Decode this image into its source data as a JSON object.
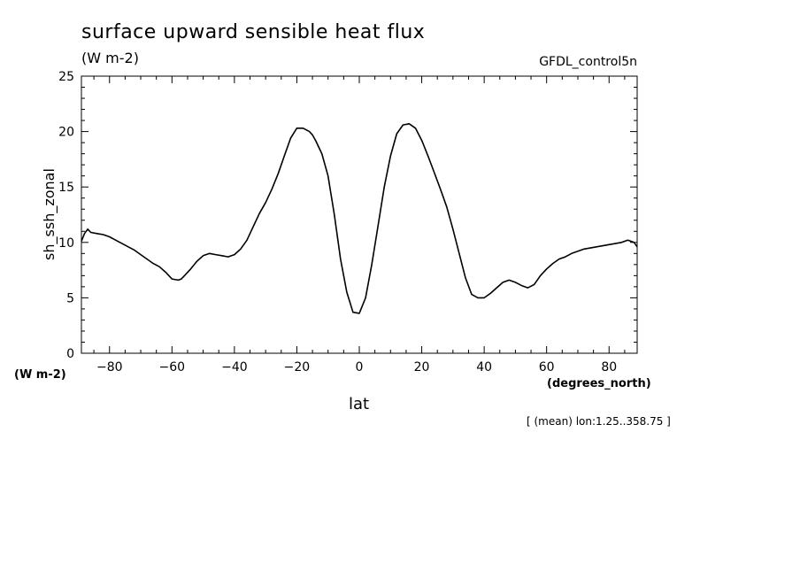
{
  "chart_data": {
    "type": "line",
    "title": "surface upward sensible heat flux",
    "units": "(W m-2)",
    "dataset": "GFDL_control5n",
    "ylabel": "sh_ssh_zonal",
    "yunits": "(W m-2)",
    "xlabel": "lat",
    "xunits": "(degrees_north)",
    "footnote": "[ (mean) lon:1.25..358.75 ]",
    "xlim": [
      -89,
      89
    ],
    "ylim": [
      0,
      25
    ],
    "xticks": [
      -80,
      -60,
      -40,
      -20,
      0,
      20,
      40,
      60,
      80
    ],
    "yticks": [
      0,
      5,
      10,
      15,
      20,
      25
    ],
    "grid": false,
    "series": [
      {
        "x": [
          -89,
          -88,
          -87,
          -86,
          -84,
          -82,
          -80,
          -78,
          -76,
          -74,
          -72,
          -70,
          -68,
          -66,
          -64,
          -62,
          -60,
          -58,
          -57,
          -56,
          -54,
          -52,
          -50,
          -48,
          -46,
          -44,
          -42,
          -40,
          -38,
          -36,
          -34,
          -32,
          -30,
          -28,
          -26,
          -24,
          -22,
          -20,
          -18,
          -16,
          -15,
          -14,
          -12,
          -10,
          -8,
          -6,
          -4,
          -2,
          0,
          2,
          4,
          6,
          8,
          10,
          12,
          14,
          16,
          18,
          20,
          22,
          24,
          26,
          28,
          30,
          32,
          34,
          36,
          38,
          40,
          42,
          44,
          46,
          48,
          50,
          52,
          54,
          56,
          58,
          60,
          62,
          64,
          66,
          68,
          70,
          72,
          74,
          76,
          78,
          80,
          82,
          84,
          86,
          88,
          89
        ],
        "y": [
          10.1,
          10.8,
          11.2,
          10.9,
          10.8,
          10.7,
          10.5,
          10.2,
          9.9,
          9.6,
          9.3,
          8.9,
          8.5,
          8.1,
          7.8,
          7.3,
          6.7,
          6.6,
          6.7,
          7.0,
          7.6,
          8.3,
          8.8,
          9.0,
          8.9,
          8.8,
          8.7,
          8.9,
          9.4,
          10.2,
          11.4,
          12.6,
          13.6,
          14.8,
          16.2,
          17.8,
          19.4,
          20.3,
          20.3,
          20.0,
          19.7,
          19.2,
          18.0,
          16.0,
          12.5,
          8.5,
          5.5,
          3.7,
          3.6,
          5.0,
          8.0,
          11.5,
          15.0,
          17.8,
          19.8,
          20.6,
          20.7,
          20.3,
          19.2,
          17.8,
          16.3,
          14.8,
          13.2,
          11.2,
          9.0,
          6.8,
          5.3,
          5.0,
          5.0,
          5.4,
          5.9,
          6.4,
          6.6,
          6.4,
          6.1,
          5.9,
          6.2,
          7.0,
          7.6,
          8.1,
          8.5,
          8.7,
          9.0,
          9.2,
          9.4,
          9.5,
          9.6,
          9.7,
          9.8,
          9.9,
          10.0,
          10.2,
          10.0,
          9.6
        ]
      }
    ]
  }
}
